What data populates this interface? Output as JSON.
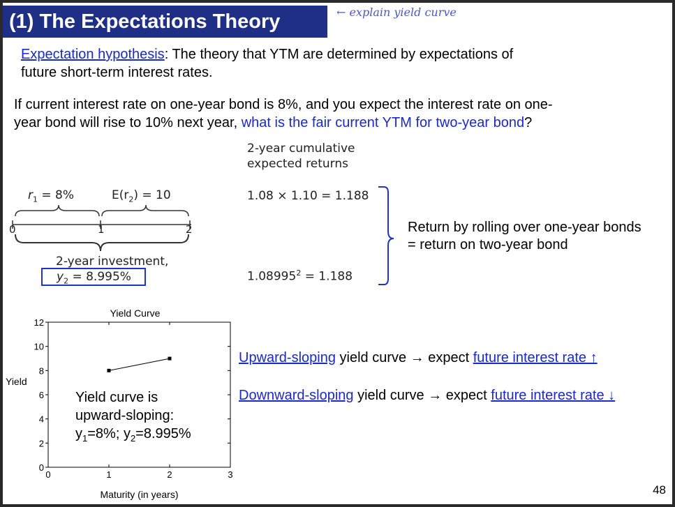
{
  "slide": {
    "title": "(1) The Expectations Theory",
    "annotation": "← explain yield curve",
    "definition": {
      "term": "Expectation hypothesis",
      "text_line1": ": The theory that YTM are determined by expectations of",
      "text_line2": "future short-term interest rates."
    },
    "question": {
      "line1": "If current interest rate on one-year bond is 8%, and you expect the interest rate on one-",
      "line2_prefix": "year bond will rise to 10% next year, ",
      "line2_highlight": "what is the fair current YTM for  two-year bond",
      "line2_suffix": "?"
    },
    "figure": {
      "cumulative_header_line1": "2-year cumulative",
      "cumulative_header_line2": "expected returns",
      "r1_label": "r",
      "r1_sub": "1",
      "r1_value": " = 8%",
      "er2_label": "E(r",
      "er2_sub": "2",
      "er2_value": ") = 10",
      "tick_0": "0",
      "tick_1": "1",
      "tick_2": "2",
      "investment_label": "2-year investment,",
      "y2_label": "y",
      "y2_sub": "2",
      "y2_value": " = 8.995%",
      "rolling_calc": "1.08 × 1.10 = 1.188",
      "bond_calc_base": "1.08995",
      "bond_calc_exp": "2",
      "bond_calc_result": " = 1.188"
    },
    "equivalence": {
      "line1": "Return by rolling over one-year bonds",
      "line2": "= return on two-year bond"
    },
    "chart_text": {
      "yield_curve_is": "Yield curve is",
      "upward_sloping": "upward-sloping:",
      "y1_label": "y",
      "y1_sub": "1",
      "y1_value": "=8%; ",
      "y2_label": "y",
      "y2_sub": "2",
      "y2_value": "=8.995%"
    },
    "bullets": {
      "up_term": "Upward-sloping",
      "up_mid": " yield curve → expect ",
      "up_link": "future interest rate ↑",
      "down_term": "Downward-sloping",
      "down_mid": " yield curve → expect ",
      "down_link": "future interest rate ↓"
    },
    "page_number": "48"
  },
  "colors": {
    "title_bg": "#1f2f86",
    "link_blue": "#1a29c9",
    "box_blue": "#2233cc",
    "annotation_ink": "#4c57c9"
  },
  "chart_data": {
    "type": "line",
    "title": "Yield Curve",
    "xlabel": "Maturity (in years)",
    "ylabel": "Yield",
    "x": [
      1,
      2
    ],
    "values": [
      8,
      8.995
    ],
    "xlim": [
      0,
      3
    ],
    "ylim": [
      0,
      12
    ],
    "xticks": [
      0,
      1,
      2,
      3
    ],
    "yticks": [
      0,
      2,
      4,
      6,
      8,
      10,
      12
    ],
    "grid": false,
    "legend": "none"
  }
}
